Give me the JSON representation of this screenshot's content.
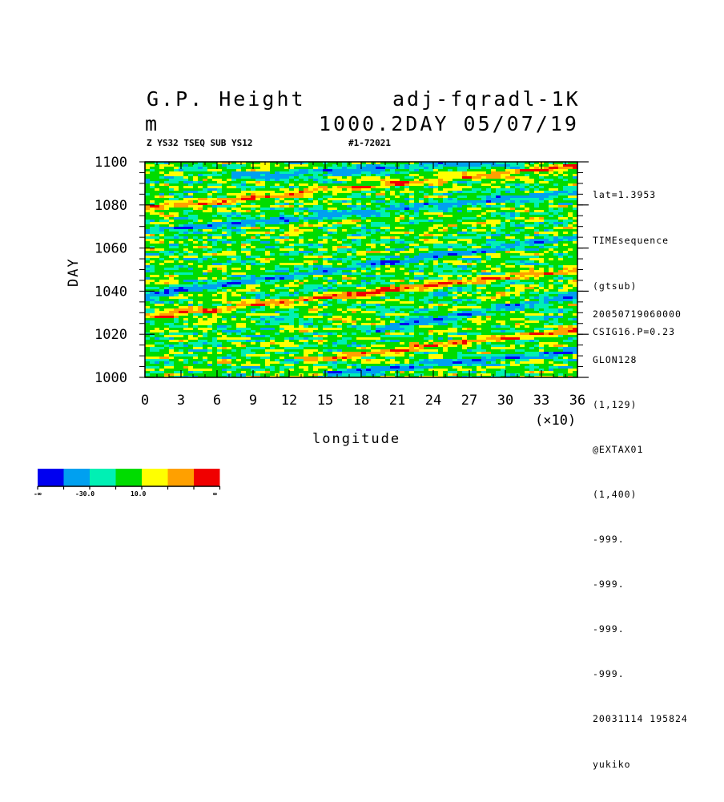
{
  "header": {
    "title_left": "G.P. Height",
    "title_right": "adj-fqradl-1K",
    "units": "m",
    "subtitle_right": "1000.2DAY 05/07/19",
    "meta_left": "Z YS32 TSEQ SUB YS12",
    "meta_right": "#1-72021"
  },
  "side_info_top": [
    "lat=1.3953",
    "TIMEsequence",
    "(gtsub)",
    "CSIG16.P=0.23"
  ],
  "side_info_bottom": [
    "20050719060000",
    "GLON128",
    "(1,129)",
    "@EXTAX01",
    "(1,400)",
    "-999.",
    "-999.",
    "-999.",
    "-999.",
    "20031114 195824",
    "yukiko"
  ],
  "chart_data": {
    "type": "heatmap",
    "xlabel": "longitude",
    "ylabel": "DAY",
    "x_multiplier_label": "(×10)",
    "x_ticks": [
      "0",
      "3",
      "6",
      "9",
      "12",
      "15",
      "18",
      "21",
      "24",
      "27",
      "30",
      "33",
      "36"
    ],
    "y_ticks": [
      "1000",
      "1020",
      "1040",
      "1060",
      "1080",
      "1100"
    ],
    "xlim": [
      0,
      36
    ],
    "ylim": [
      1000,
      1100
    ],
    "colorbar": {
      "colors": [
        "#0000f0",
        "#00a0f0",
        "#00f0b4",
        "#00dc00",
        "#ffff00",
        "#ffa000",
        "#f00000"
      ],
      "labels": [
        "-∞",
        "-30.0",
        "10.0",
        "∞"
      ]
    },
    "features": [
      {
        "kind": "low",
        "from": [
          0,
          1038
        ],
        "to": [
          36,
          1065
        ]
      },
      {
        "kind": "low",
        "from": [
          20,
          1023
        ],
        "to": [
          36,
          1038
        ]
      },
      {
        "kind": "low",
        "from": [
          16,
          1002
        ],
        "to": [
          36,
          1012
        ]
      },
      {
        "kind": "low",
        "from": [
          0,
          1068
        ],
        "to": [
          36,
          1086
        ]
      },
      {
        "kind": "low",
        "from": [
          8,
          1093
        ],
        "to": [
          36,
          1102
        ]
      },
      {
        "kind": "high",
        "from": [
          0,
          1028
        ],
        "to": [
          36,
          1050
        ]
      },
      {
        "kind": "high",
        "from": [
          0,
          1078
        ],
        "to": [
          36,
          1098
        ]
      },
      {
        "kind": "high",
        "from": [
          14,
          1008
        ],
        "to": [
          36,
          1022
        ]
      }
    ]
  }
}
